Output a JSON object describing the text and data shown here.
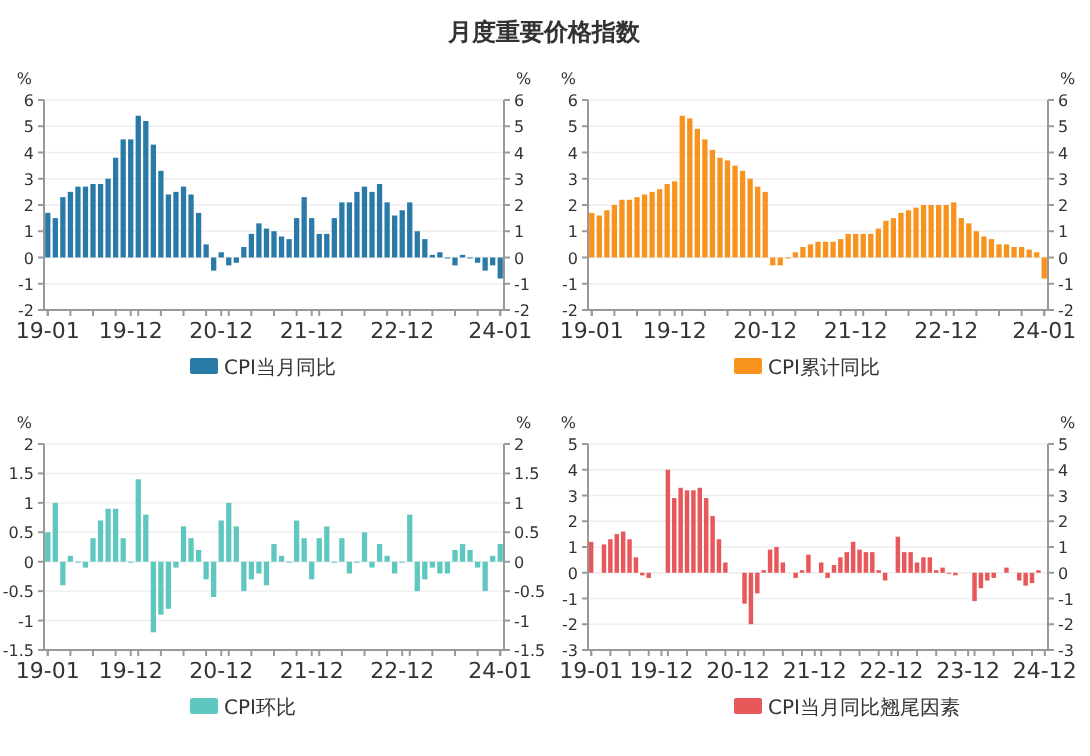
{
  "chart_data": [
    {
      "type": "bar",
      "title": "月度重要价格指数",
      "ylabel": "%",
      "y2label": "%",
      "grid": "y",
      "legend": "bottom",
      "categories": [
        "19-01",
        null,
        null,
        null,
        null,
        null,
        null,
        null,
        null,
        null,
        null,
        "19-12",
        null,
        null,
        null,
        null,
        null,
        null,
        null,
        null,
        null,
        null,
        null,
        "20-12",
        null,
        null,
        null,
        null,
        null,
        null,
        null,
        null,
        null,
        null,
        null,
        "21-12",
        null,
        null,
        null,
        null,
        null,
        null,
        null,
        null,
        null,
        null,
        null,
        "22-12",
        null,
        null,
        null,
        null,
        null,
        null,
        null,
        null,
        null,
        null,
        null,
        null,
        "24-01"
      ],
      "ylim": [
        -2,
        6
      ],
      "yticks": [
        -2,
        -1,
        0,
        1,
        2,
        3,
        4,
        5,
        6
      ],
      "y2lim": [
        -2,
        6
      ],
      "y2ticks": [
        -2,
        -1,
        0,
        1,
        2,
        3,
        4,
        5,
        6
      ],
      "series": [
        {
          "name": "CPI当月同比",
          "color": "#2a7aa8",
          "values": [
            1.7,
            1.5,
            2.3,
            2.5,
            2.7,
            2.7,
            2.8,
            2.8,
            3.0,
            3.8,
            4.5,
            4.5,
            5.4,
            5.2,
            4.3,
            3.3,
            2.4,
            2.5,
            2.7,
            2.4,
            1.7,
            0.5,
            -0.5,
            0.2,
            -0.3,
            -0.2,
            0.4,
            0.9,
            1.3,
            1.1,
            1.0,
            0.8,
            0.7,
            1.5,
            2.3,
            1.5,
            0.9,
            0.9,
            1.5,
            2.1,
            2.1,
            2.5,
            2.7,
            2.5,
            2.8,
            2.1,
            1.6,
            1.8,
            2.1,
            1.0,
            0.7,
            0.1,
            0.2,
            0.0,
            -0.3,
            0.1,
            0.0,
            -0.2,
            -0.5,
            -0.3,
            -0.8
          ]
        }
      ]
    },
    {
      "type": "bar",
      "ylabel": "%",
      "y2label": "%",
      "grid": "y",
      "legend": "bottom",
      "categories": [
        "19-01",
        null,
        null,
        null,
        null,
        null,
        null,
        null,
        null,
        null,
        null,
        "19-12",
        null,
        null,
        null,
        null,
        null,
        null,
        null,
        null,
        null,
        null,
        null,
        "20-12",
        null,
        null,
        null,
        null,
        null,
        null,
        null,
        null,
        null,
        null,
        null,
        "21-12",
        null,
        null,
        null,
        null,
        null,
        null,
        null,
        null,
        null,
        null,
        null,
        "22-12",
        null,
        null,
        null,
        null,
        null,
        null,
        null,
        null,
        null,
        null,
        null,
        null,
        "24-01"
      ],
      "ylim": [
        -2,
        6
      ],
      "yticks": [
        -2,
        -1,
        0,
        1,
        2,
        3,
        4,
        5,
        6
      ],
      "y2lim": [
        -2,
        6
      ],
      "y2ticks": [
        -2,
        -1,
        0,
        1,
        2,
        3,
        4,
        5,
        6
      ],
      "series": [
        {
          "name": "CPI累计同比",
          "color": "#f7931e",
          "values": [
            1.7,
            1.6,
            1.8,
            2.0,
            2.2,
            2.2,
            2.3,
            2.4,
            2.5,
            2.6,
            2.8,
            2.9,
            5.4,
            5.3,
            4.9,
            4.5,
            4.1,
            3.8,
            3.7,
            3.5,
            3.3,
            3.0,
            2.7,
            2.5,
            -0.3,
            -0.3,
            0.0,
            0.2,
            0.4,
            0.5,
            0.6,
            0.6,
            0.6,
            0.7,
            0.9,
            0.9,
            0.9,
            0.9,
            1.1,
            1.4,
            1.5,
            1.7,
            1.8,
            1.9,
            2.0,
            2.0,
            2.0,
            2.0,
            2.1,
            1.5,
            1.3,
            1.0,
            0.8,
            0.7,
            0.5,
            0.5,
            0.4,
            0.4,
            0.3,
            0.2,
            -0.8
          ]
        }
      ]
    },
    {
      "type": "bar",
      "ylabel": "%",
      "y2label": "%",
      "grid": "y",
      "legend": "bottom",
      "categories": [
        "19-01",
        null,
        null,
        null,
        null,
        null,
        null,
        null,
        null,
        null,
        null,
        "19-12",
        null,
        null,
        null,
        null,
        null,
        null,
        null,
        null,
        null,
        null,
        null,
        "20-12",
        null,
        null,
        null,
        null,
        null,
        null,
        null,
        null,
        null,
        null,
        null,
        "21-12",
        null,
        null,
        null,
        null,
        null,
        null,
        null,
        null,
        null,
        null,
        null,
        "22-12",
        null,
        null,
        null,
        null,
        null,
        null,
        null,
        null,
        null,
        null,
        null,
        null,
        "24-01"
      ],
      "ylim": [
        -1.5,
        2
      ],
      "yticks": [
        -1.5,
        -1,
        -0.5,
        0,
        0.5,
        1,
        1.5,
        2
      ],
      "y2lim": [
        -1.5,
        2
      ],
      "y2ticks": [
        -1.5,
        -1,
        -0.5,
        0,
        0.5,
        1,
        1.5,
        2
      ],
      "series": [
        {
          "name": "CPI环比",
          "color": "#5ec8c0",
          "values": [
            0.5,
            1.0,
            -0.4,
            0.1,
            0.0,
            -0.1,
            0.4,
            0.7,
            0.9,
            0.9,
            0.4,
            0.0,
            1.4,
            0.8,
            -1.2,
            -0.9,
            -0.8,
            -0.1,
            0.6,
            0.4,
            0.2,
            -0.3,
            -0.6,
            0.7,
            1.0,
            0.6,
            -0.5,
            -0.3,
            -0.2,
            -0.4,
            0.3,
            0.1,
            0.0,
            0.7,
            0.4,
            -0.3,
            0.4,
            0.6,
            0.0,
            0.4,
            -0.2,
            0.0,
            0.5,
            -0.1,
            0.3,
            0.1,
            -0.2,
            0.0,
            0.8,
            -0.5,
            -0.3,
            -0.1,
            -0.2,
            -0.2,
            0.2,
            0.3,
            0.2,
            -0.1,
            -0.5,
            0.1,
            0.3
          ]
        }
      ]
    },
    {
      "type": "bar",
      "ylabel": "%",
      "y2label": "%",
      "grid": "y",
      "legend": "bottom",
      "categories": [
        "19-01",
        null,
        null,
        null,
        null,
        null,
        null,
        null,
        null,
        null,
        null,
        "19-12",
        null,
        null,
        null,
        null,
        null,
        null,
        null,
        null,
        null,
        null,
        null,
        "20-12",
        null,
        null,
        null,
        null,
        null,
        null,
        null,
        null,
        null,
        null,
        null,
        "21-12",
        null,
        null,
        null,
        null,
        null,
        null,
        null,
        null,
        null,
        null,
        null,
        "22-12",
        null,
        null,
        null,
        null,
        null,
        null,
        null,
        null,
        null,
        null,
        null,
        "23-12",
        null,
        null,
        null,
        null,
        null,
        null,
        null,
        null,
        null,
        null,
        null,
        "24-12"
      ],
      "ylim": [
        -3,
        5
      ],
      "yticks": [
        -3,
        -2,
        -1,
        0,
        1,
        2,
        3,
        4,
        5
      ],
      "y2lim": [
        -3,
        5
      ],
      "y2ticks": [
        -3,
        -2,
        -1,
        0,
        1,
        2,
        3,
        4,
        5
      ],
      "series": [
        {
          "name": "CPI当月同比翘尾因素",
          "color": "#e8575a",
          "values": [
            1.2,
            null,
            1.1,
            1.3,
            1.5,
            1.6,
            1.3,
            0.6,
            -0.1,
            -0.2,
            null,
            null,
            4.0,
            2.9,
            3.3,
            3.2,
            3.2,
            3.3,
            2.9,
            2.2,
            1.3,
            0.4,
            null,
            null,
            -1.2,
            -2.0,
            -0.8,
            0.1,
            0.9,
            1.0,
            0.4,
            null,
            -0.2,
            0.1,
            0.7,
            null,
            0.4,
            -0.2,
            0.3,
            0.6,
            0.8,
            1.2,
            0.9,
            0.8,
            0.8,
            0.1,
            -0.3,
            null,
            1.4,
            0.8,
            0.8,
            0.4,
            0.6,
            0.6,
            0.1,
            0.2,
            0.0,
            -0.1,
            null,
            null,
            -1.1,
            -0.6,
            -0.3,
            -0.2,
            null,
            0.2,
            null,
            -0.3,
            -0.5,
            -0.4,
            0.1,
            null
          ]
        }
      ]
    }
  ]
}
